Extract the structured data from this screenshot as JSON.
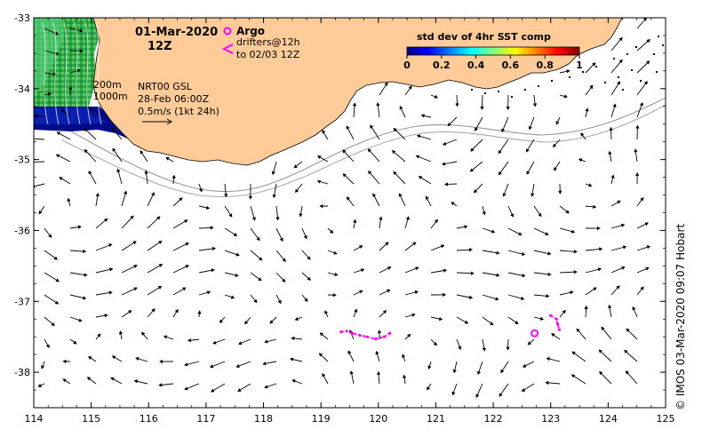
{
  "chart_data": {
    "type": "map",
    "xlim": [
      114,
      125
    ],
    "ylim": [
      -38.5,
      -33
    ],
    "x_ticks": [
      114,
      115,
      116,
      117,
      118,
      119,
      120,
      121,
      122,
      123,
      124,
      125
    ],
    "y_ticks": [
      -33,
      -34,
      -35,
      -36,
      -37,
      -38
    ],
    "x_tick_labels": [
      "114",
      "115",
      "116",
      "117",
      "118",
      "119",
      "120",
      "121",
      "122",
      "123",
      "124",
      "125"
    ],
    "y_tick_labels": [
      "-33",
      "-34",
      "-35",
      "-36",
      "-37",
      "-38"
    ],
    "date": "01-Mar-2020",
    "time": "12Z",
    "legend": {
      "argo_label": "Argo",
      "drifters_label": "drifters@12h",
      "drifters_sub": "to 02/03 12Z"
    },
    "isobaths": [
      "200m",
      "1000m"
    ],
    "product": "NRT00 GSL",
    "product_time": "28-Feb 06:00Z",
    "scale_label": "0.5m/s (1kt 24h)",
    "colorbar": {
      "title": "std dev of 4hr SST comp",
      "tick_labels": [
        "0",
        "0.2",
        "0.4",
        "0.6",
        "0.8",
        "1"
      ],
      "colors": [
        "#000080",
        "#0000ff",
        "#0080ff",
        "#00ffff",
        "#80ff80",
        "#ffff00",
        "#ff8000",
        "#ff0000",
        "#800000"
      ]
    },
    "argo_positions": [
      {
        "lon": 122.72,
        "lat": -37.45
      }
    ],
    "drifter_tracks": [
      [
        [
          119.35,
          -37.43
        ],
        [
          119.45,
          -37.42
        ],
        [
          119.55,
          -37.45
        ],
        [
          119.68,
          -37.48
        ],
        [
          119.8,
          -37.5
        ],
        [
          119.95,
          -37.53
        ],
        [
          120.1,
          -37.5
        ],
        [
          120.2,
          -37.45
        ]
      ],
      [
        [
          123.0,
          -37.2
        ],
        [
          123.1,
          -37.25
        ],
        [
          123.12,
          -37.32
        ],
        [
          123.15,
          -37.4
        ]
      ]
    ],
    "land_color": "#ffcc99",
    "credit": "© IMOS 03-Mar-2020 09:07 Hobart"
  }
}
